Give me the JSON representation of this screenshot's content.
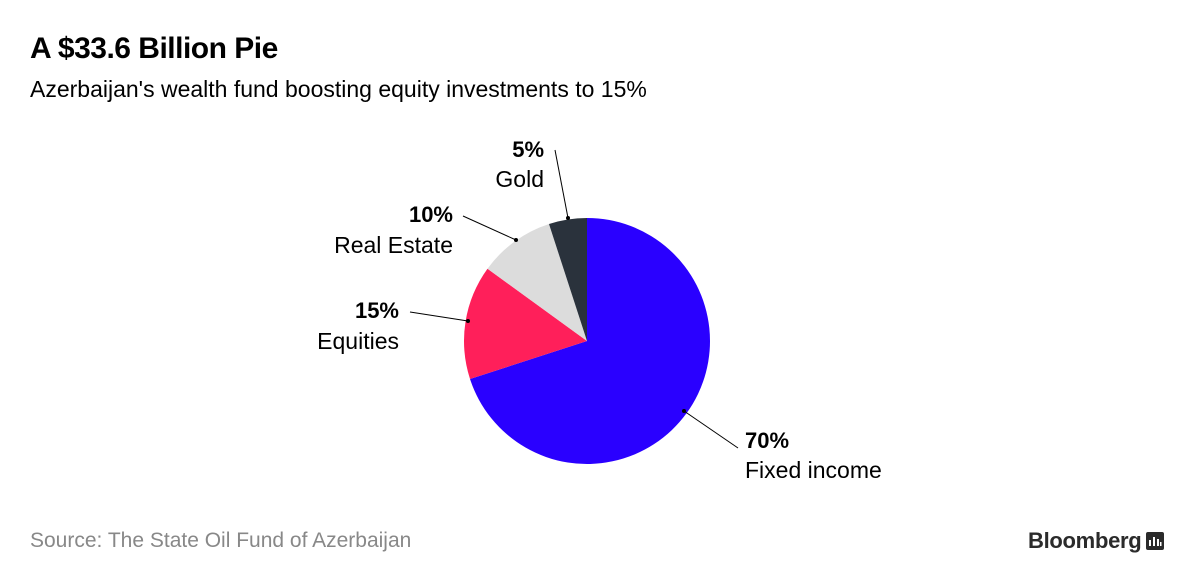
{
  "header": {
    "title": "A $33.6 Billion Pie",
    "subtitle": "Azerbaijan's wealth fund boosting equity investments to 15%"
  },
  "footer": {
    "source": "Source: The State Oil Fund of Azerbaijan",
    "brand": "Bloomberg",
    "brand_icon": "bloomberg-terminal-icon"
  },
  "chart_data": {
    "type": "pie",
    "title": "A $33.6 Billion Pie",
    "subtitle": "Azerbaijan's wealth fund boosting equity investments to 15%",
    "start_angle_deg": 0,
    "direction": "clockwise",
    "slices": [
      {
        "label": "Fixed income",
        "value": 70,
        "value_label": "70%",
        "color": "#2a00ff"
      },
      {
        "label": "Equities",
        "value": 15,
        "value_label": "15%",
        "color": "#ff1f5a"
      },
      {
        "label": "Real Estate",
        "value": 10,
        "value_label": "10%",
        "color": "#dcdcdc"
      },
      {
        "label": "Gold",
        "value": 5,
        "value_label": "5%",
        "color": "#2a323c"
      }
    ]
  }
}
